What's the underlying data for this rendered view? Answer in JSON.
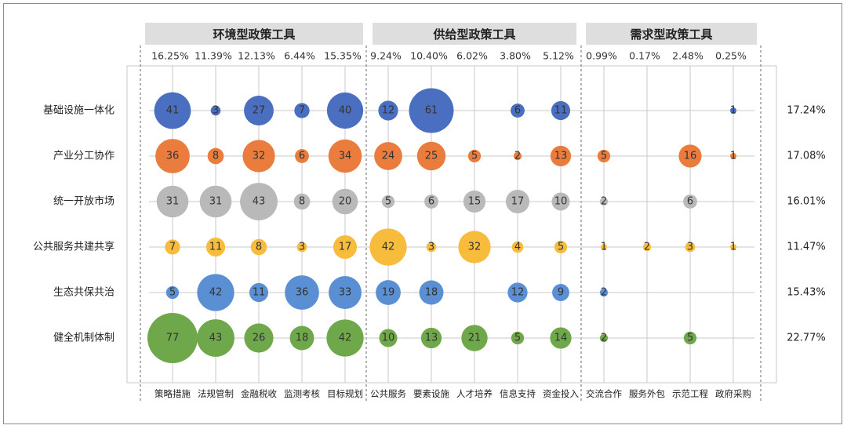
{
  "chart_data": {
    "type": "bubble-matrix",
    "groups": [
      {
        "label": "环境型政策工具",
        "categories": [
          "策略措施",
          "法规管制",
          "金融税收",
          "监测考核",
          "目标规划"
        ]
      },
      {
        "label": "供给型政策工具",
        "categories": [
          "公共服务",
          "要素设施",
          "人才培养",
          "信息支持",
          "资金投入"
        ]
      },
      {
        "label": "需求型政策工具",
        "categories": [
          "交流合作",
          "服务外包",
          "示范工程",
          "政府采购"
        ]
      }
    ],
    "categories": [
      "策略措施",
      "法规管制",
      "金融税收",
      "监测考核",
      "目标规划",
      "公共服务",
      "要素设施",
      "人才培养",
      "信息支持",
      "资金投入",
      "交流合作",
      "服务外包",
      "示范工程",
      "政府采购"
    ],
    "column_percents": [
      "16.25%",
      "11.39%",
      "12.13%",
      "6.44%",
      "15.35%",
      "9.24%",
      "10.40%",
      "6.02%",
      "3.80%",
      "5.12%",
      "0.99%",
      "0.17%",
      "2.48%",
      "0.25%"
    ],
    "rows": [
      {
        "name": "基础设施一体化",
        "percent": "17.24%",
        "color": "#4a6fc1",
        "values": [
          41,
          3,
          27,
          7,
          40,
          12,
          61,
          null,
          6,
          11,
          null,
          null,
          null,
          1
        ]
      },
      {
        "name": "产业分工协作",
        "percent": "17.08%",
        "color": "#ea7d3e",
        "values": [
          36,
          8,
          32,
          6,
          34,
          24,
          25,
          5,
          2,
          13,
          5,
          null,
          16,
          1
        ]
      },
      {
        "name": "统一开放市场",
        "percent": "16.01%",
        "color": "#b9b9b9",
        "values": [
          31,
          31,
          43,
          8,
          20,
          5,
          6,
          15,
          17,
          10,
          2,
          null,
          6,
          null
        ]
      },
      {
        "name": "公共服务共建共享",
        "percent": "11.47%",
        "color": "#f7bc3b",
        "values": [
          7,
          11,
          8,
          3,
          17,
          42,
          3,
          32,
          4,
          5,
          1,
          2,
          3,
          1
        ]
      },
      {
        "name": "生态共保共治",
        "percent": "15.43%",
        "color": "#5b8fd4",
        "values": [
          5,
          42,
          11,
          36,
          33,
          19,
          18,
          null,
          12,
          9,
          2,
          null,
          null,
          null
        ]
      },
      {
        "name": "健全机制体制",
        "percent": "22.77%",
        "color": "#6fa84a",
        "values": [
          77,
          43,
          26,
          18,
          42,
          10,
          13,
          21,
          5,
          14,
          2,
          null,
          5,
          null
        ]
      }
    ]
  }
}
